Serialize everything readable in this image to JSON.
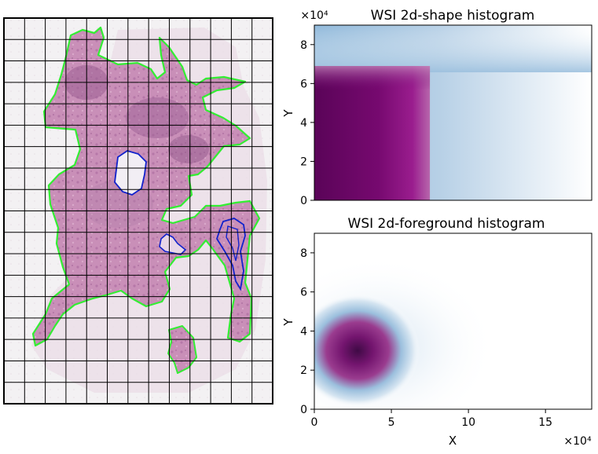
{
  "slide_panel": {
    "grid": {
      "cols": 13,
      "rows": 18
    },
    "colors": {
      "tissue": "#c98fb8",
      "tissue_dark": "#a86a9c",
      "foreground_outline": "#33ee33",
      "annotation_outline": "#1122cc",
      "grid_line": "#000000"
    }
  },
  "chart_data": [
    {
      "type": "heatmap",
      "title": "WSI 2d-shape histogram",
      "xlabel": "",
      "ylabel": "Y",
      "x_exponent": "",
      "y_exponent": "×10⁴",
      "xlim": [
        0,
        18
      ],
      "ylim": [
        0,
        9
      ],
      "yticks": [
        0,
        2,
        4,
        6,
        8
      ],
      "ytick_labels": [
        "0",
        "2",
        "4",
        "6",
        "8"
      ],
      "xticks": [],
      "xtick_labels": [],
      "colormap": [
        "#ffffff",
        "#dbe7f2",
        "#8db7d9",
        "#b04d9e",
        "#7a0a77",
        "#4f0050"
      ],
      "regions": [
        {
          "x": [
            0,
            7.5
          ],
          "y": [
            0,
            6.9
          ],
          "level": "high"
        },
        {
          "x": [
            0,
            18
          ],
          "y": [
            6.9,
            9
          ],
          "level": "low"
        },
        {
          "x": [
            7.5,
            18
          ],
          "y": [
            0,
            6.9
          ],
          "level": "low"
        }
      ]
    },
    {
      "type": "heatmap",
      "title": "WSI 2d-foreground histogram",
      "xlabel": "X",
      "ylabel": "Y",
      "x_exponent": "×10⁴",
      "y_exponent": "×10⁴",
      "xlim": [
        0,
        18
      ],
      "ylim": [
        0,
        9
      ],
      "yticks": [
        0,
        2,
        4,
        6,
        8
      ],
      "ytick_labels": [
        "0",
        "2",
        "4",
        "6",
        "8"
      ],
      "xticks": [
        0,
        5,
        10,
        15
      ],
      "xtick_labels": [
        "0",
        "5",
        "10",
        "15"
      ],
      "colormap": [
        "#ffffff",
        "#dbe7f2",
        "#8db7d9",
        "#b04d9e",
        "#7a0a77",
        "#4f0050"
      ],
      "peak": {
        "x": 2.8,
        "y": 3.0
      },
      "spread": {
        "x": 3.0,
        "y": 2.0
      }
    }
  ]
}
